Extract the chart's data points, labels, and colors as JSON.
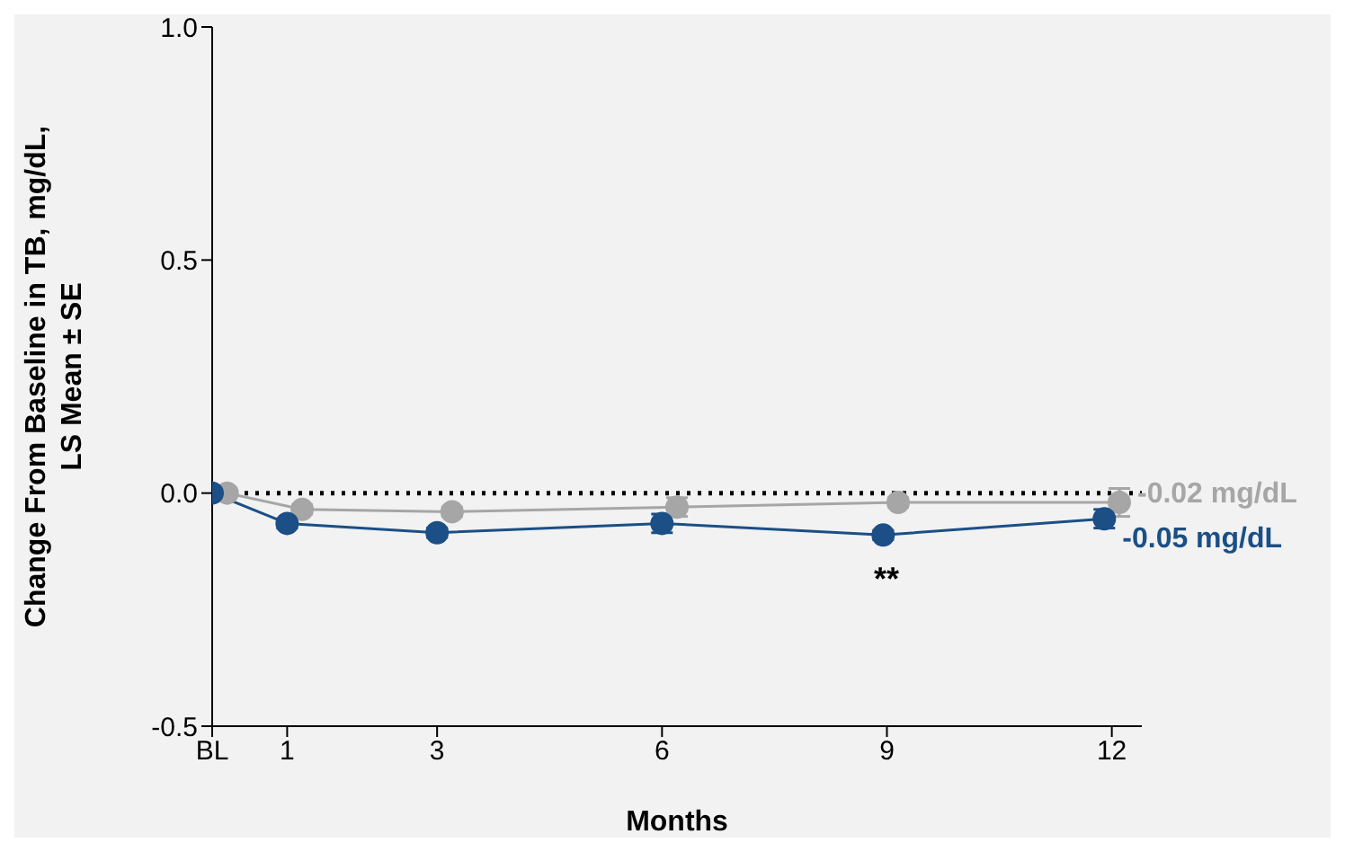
{
  "chart_data": {
    "type": "line",
    "ylabel": "Change From Baseline in TB, mg/dL,\nLS Mean ± SE",
    "xlabel": "Months",
    "xlim": [
      0,
      12.4
    ],
    "xticks": [
      {
        "value": 0,
        "label": "BL"
      },
      1,
      3,
      6,
      9,
      12
    ],
    "ylim": [
      -0.5,
      1.0
    ],
    "yticks": [
      -0.5,
      0.5,
      {
        "value": 0,
        "label": "0.0"
      },
      {
        "value": 1,
        "label": "1.0"
      }
    ],
    "marker": "circle",
    "series": [
      {
        "name": "-0.02 mg/dL",
        "color": "#a6a6a6",
        "x": [
          0.2,
          1.2,
          3.2,
          6.2,
          9.15,
          12.1
        ],
        "values": [
          0,
          -0.035,
          -0.04,
          -0.03,
          -0.02,
          -0.02
        ],
        "errors": [
          null,
          0.01,
          0.01,
          0.02,
          0.01,
          0.03
        ]
      },
      {
        "name": "-0.05 mg/dL",
        "color": "#1b4f86",
        "x": [
          0,
          1,
          3,
          6,
          8.95,
          11.9
        ],
        "values": [
          0,
          -0.065,
          -0.085,
          -0.065,
          -0.09,
          -0.055
        ],
        "errors": [
          null,
          0.01,
          0.01,
          0.02,
          0.01,
          0.02
        ]
      }
    ],
    "ref_lines": [
      {
        "axis": "y",
        "value": 0,
        "line_style": "dotted",
        "color": "#000000"
      }
    ],
    "annotations": [
      "**"
    ]
  }
}
